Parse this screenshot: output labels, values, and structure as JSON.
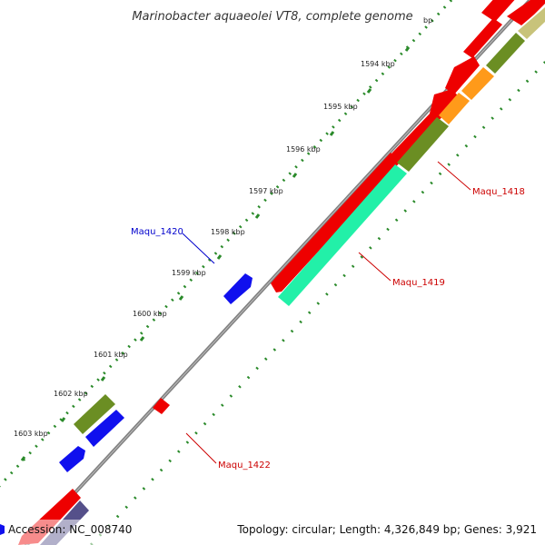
{
  "title": "Marinobacter aquaeolei VT8, complete genome",
  "ticks": [
    {
      "label": "bp"
    },
    {
      "label": "1594 kbp"
    },
    {
      "label": "1595 kbp"
    },
    {
      "label": "1596 kbp"
    },
    {
      "label": "1597 kbp"
    },
    {
      "label": "1598 kbp"
    },
    {
      "label": "1599 kbp"
    },
    {
      "label": "1600 kbp"
    },
    {
      "label": "1601 kbp"
    },
    {
      "label": "1602 kbp"
    },
    {
      "label": "1603 kbp"
    }
  ],
  "gene_labels": [
    {
      "id": "maqu1418",
      "text": "Maqu_1418",
      "color": "#cc0000"
    },
    {
      "id": "maqu1419",
      "text": "Maqu_1419",
      "color": "#cc0000"
    },
    {
      "id": "maqu1420",
      "text": "Maqu_1420",
      "color": "#0000cc"
    },
    {
      "id": "maqu1422",
      "text": "Maqu_1422",
      "color": "#cc0000"
    }
  ],
  "footer": {
    "accession": "Accession: NC_008740",
    "topology": "Topology: circular; Length: 4,326,849 bp; Genes: 3,921"
  },
  "colors": {
    "backbone": "#808080",
    "dots": "#2a8a2a",
    "red": "#ee0000",
    "blue": "#1010ee",
    "olive": "#6b8e23",
    "orange": "#ff9a1a",
    "teal": "#22f0a8",
    "khaki": "#c8c37a",
    "navy": "#55508a"
  }
}
